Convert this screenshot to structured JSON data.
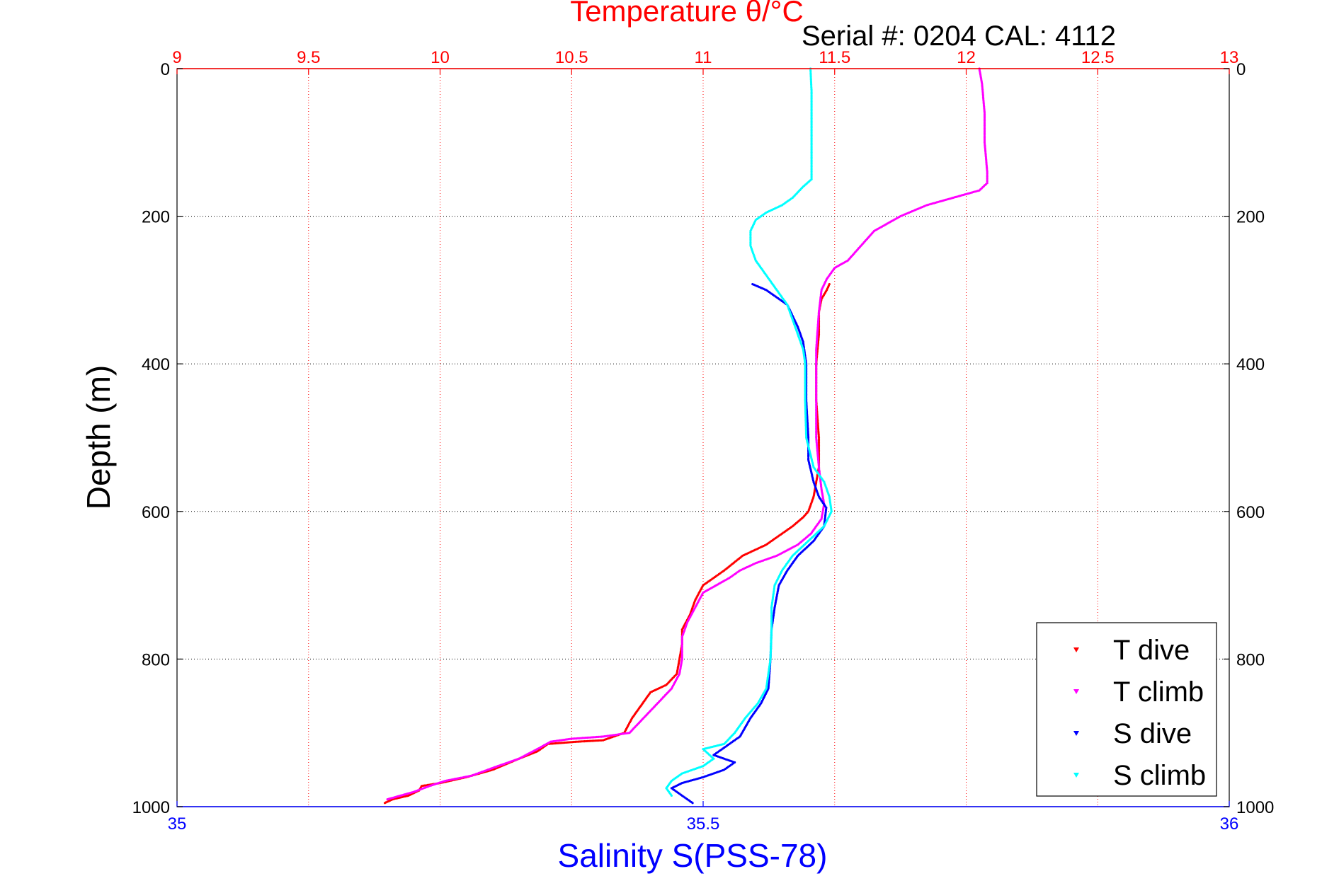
{
  "chart_data": {
    "type": "scatter",
    "top_axis_label": "Temperature θ/°C",
    "header_text": "Serial #: 0204  CAL: 4112",
    "xlabel": "Salinity S(PSS-78)",
    "ylabel": "Depth (m)",
    "temperature_range": [
      9,
      13
    ],
    "salinity_range": [
      35,
      36
    ],
    "depth_range": [
      0,
      1000
    ],
    "depth_reversed": true,
    "temperature_ticks": [
      "9",
      "9.5",
      "10",
      "10.5",
      "11",
      "11.5",
      "12",
      "12.5",
      "13"
    ],
    "salinity_ticks": [
      "35",
      "35.5",
      "36"
    ],
    "depth_ticks": [
      "0",
      "200",
      "400",
      "600",
      "800",
      "1000"
    ],
    "grid": true,
    "legend_position": "bottom-right",
    "colors": {
      "temperature_axis": "#ff0000",
      "salinity_axis": "#0000ff",
      "grid": "#000000",
      "t_dive": "#ff0000",
      "t_climb": "#ff00ff",
      "s_dive": "#0000ff",
      "s_climb": "#00ffff"
    },
    "series": [
      {
        "name": "T dive",
        "axis": "temperature",
        "color": "#ff0000",
        "points": [
          [
            11.48,
            292
          ],
          [
            11.47,
            300
          ],
          [
            11.45,
            312
          ],
          [
            11.44,
            330
          ],
          [
            11.44,
            360
          ],
          [
            11.43,
            400
          ],
          [
            11.43,
            450
          ],
          [
            11.44,
            500
          ],
          [
            11.44,
            540
          ],
          [
            11.43,
            560
          ],
          [
            11.42,
            580
          ],
          [
            11.41,
            590
          ],
          [
            11.4,
            600
          ],
          [
            11.38,
            608
          ],
          [
            11.34,
            620
          ],
          [
            11.3,
            630
          ],
          [
            11.24,
            645
          ],
          [
            11.15,
            660
          ],
          [
            11.08,
            680
          ],
          [
            11.04,
            690
          ],
          [
            11.0,
            700
          ],
          [
            10.97,
            720
          ],
          [
            10.95,
            740
          ],
          [
            10.92,
            760
          ],
          [
            10.92,
            780
          ],
          [
            10.91,
            800
          ],
          [
            10.9,
            820
          ],
          [
            10.86,
            835
          ],
          [
            10.8,
            845
          ],
          [
            10.77,
            860
          ],
          [
            10.73,
            880
          ],
          [
            10.7,
            900
          ],
          [
            10.62,
            910
          ],
          [
            10.52,
            912
          ],
          [
            10.41,
            915
          ],
          [
            10.37,
            925
          ],
          [
            10.3,
            935
          ],
          [
            10.2,
            950
          ],
          [
            10.1,
            960
          ],
          [
            10.0,
            968
          ],
          [
            9.93,
            972
          ],
          [
            9.92,
            978
          ],
          [
            9.88,
            985
          ],
          [
            9.82,
            990
          ],
          [
            9.79,
            995
          ]
        ]
      },
      {
        "name": "T climb",
        "axis": "temperature",
        "color": "#ff00ff",
        "points": [
          [
            12.05,
            0
          ],
          [
            12.06,
            20
          ],
          [
            12.07,
            60
          ],
          [
            12.07,
            100
          ],
          [
            12.08,
            140
          ],
          [
            12.08,
            155
          ],
          [
            12.05,
            165
          ],
          [
            11.95,
            175
          ],
          [
            11.85,
            185
          ],
          [
            11.75,
            200
          ],
          [
            11.7,
            210
          ],
          [
            11.65,
            220
          ],
          [
            11.6,
            240
          ],
          [
            11.55,
            260
          ],
          [
            11.5,
            270
          ],
          [
            11.47,
            285
          ],
          [
            11.45,
            300
          ],
          [
            11.44,
            330
          ],
          [
            11.43,
            380
          ],
          [
            11.43,
            440
          ],
          [
            11.43,
            500
          ],
          [
            11.44,
            540
          ],
          [
            11.45,
            570
          ],
          [
            11.46,
            590
          ],
          [
            11.45,
            610
          ],
          [
            11.41,
            630
          ],
          [
            11.36,
            645
          ],
          [
            11.28,
            660
          ],
          [
            11.2,
            670
          ],
          [
            11.14,
            680
          ],
          [
            11.1,
            690
          ],
          [
            11.05,
            700
          ],
          [
            11.0,
            710
          ],
          [
            10.97,
            730
          ],
          [
            10.94,
            750
          ],
          [
            10.92,
            770
          ],
          [
            10.92,
            800
          ],
          [
            10.91,
            820
          ],
          [
            10.88,
            840
          ],
          [
            10.84,
            855
          ],
          [
            10.8,
            870
          ],
          [
            10.76,
            885
          ],
          [
            10.72,
            900
          ],
          [
            10.62,
            905
          ],
          [
            10.5,
            908
          ],
          [
            10.42,
            912
          ],
          [
            10.38,
            920
          ],
          [
            10.3,
            935
          ],
          [
            10.22,
            945
          ],
          [
            10.12,
            958
          ],
          [
            10.02,
            965
          ],
          [
            9.96,
            972
          ],
          [
            9.9,
            980
          ],
          [
            9.85,
            985
          ],
          [
            9.8,
            990
          ]
        ]
      },
      {
        "name": "S dive",
        "axis": "salinity",
        "color": "#0000ff",
        "points": [
          [
            35.547,
            292
          ],
          [
            35.56,
            300
          ],
          [
            35.57,
            310
          ],
          [
            35.58,
            320
          ],
          [
            35.585,
            335
          ],
          [
            35.59,
            350
          ],
          [
            35.595,
            370
          ],
          [
            35.598,
            400
          ],
          [
            35.598,
            450
          ],
          [
            35.6,
            500
          ],
          [
            35.6,
            530
          ],
          [
            35.605,
            560
          ],
          [
            35.61,
            580
          ],
          [
            35.617,
            595
          ],
          [
            35.615,
            620
          ],
          [
            35.605,
            640
          ],
          [
            35.59,
            660
          ],
          [
            35.58,
            680
          ],
          [
            35.572,
            700
          ],
          [
            35.568,
            730
          ],
          [
            35.565,
            760
          ],
          [
            35.564,
            800
          ],
          [
            35.562,
            840
          ],
          [
            35.555,
            860
          ],
          [
            35.545,
            880
          ],
          [
            35.535,
            905
          ],
          [
            35.52,
            920
          ],
          [
            35.51,
            930
          ],
          [
            35.53,
            940
          ],
          [
            35.52,
            950
          ],
          [
            35.5,
            960
          ],
          [
            35.48,
            968
          ],
          [
            35.47,
            975
          ],
          [
            35.48,
            985
          ],
          [
            35.49,
            995
          ]
        ]
      },
      {
        "name": "S climb",
        "axis": "salinity",
        "color": "#00ffff",
        "points": [
          [
            35.602,
            0
          ],
          [
            35.603,
            30
          ],
          [
            35.603,
            80
          ],
          [
            35.603,
            120
          ],
          [
            35.603,
            150
          ],
          [
            35.595,
            160
          ],
          [
            35.585,
            175
          ],
          [
            35.575,
            185
          ],
          [
            35.56,
            195
          ],
          [
            35.55,
            205
          ],
          [
            35.545,
            220
          ],
          [
            35.545,
            240
          ],
          [
            35.55,
            260
          ],
          [
            35.56,
            280
          ],
          [
            35.57,
            300
          ],
          [
            35.58,
            320
          ],
          [
            35.585,
            340
          ],
          [
            35.59,
            360
          ],
          [
            35.595,
            380
          ],
          [
            35.597,
            400
          ],
          [
            35.597,
            450
          ],
          [
            35.598,
            500
          ],
          [
            35.605,
            540
          ],
          [
            35.615,
            560
          ],
          [
            35.62,
            580
          ],
          [
            35.622,
            600
          ],
          [
            35.615,
            620
          ],
          [
            35.6,
            640
          ],
          [
            35.585,
            660
          ],
          [
            35.575,
            680
          ],
          [
            35.568,
            700
          ],
          [
            35.565,
            730
          ],
          [
            35.565,
            760
          ],
          [
            35.564,
            800
          ],
          [
            35.56,
            840
          ],
          [
            35.552,
            860
          ],
          [
            35.54,
            880
          ],
          [
            35.53,
            900
          ],
          [
            35.52,
            915
          ],
          [
            35.5,
            922
          ],
          [
            35.51,
            935
          ],
          [
            35.5,
            945
          ],
          [
            35.48,
            955
          ],
          [
            35.47,
            965
          ],
          [
            35.465,
            975
          ],
          [
            35.47,
            985
          ]
        ]
      }
    ],
    "legend": [
      "T dive",
      "T climb",
      "S dive",
      "S climb"
    ]
  }
}
